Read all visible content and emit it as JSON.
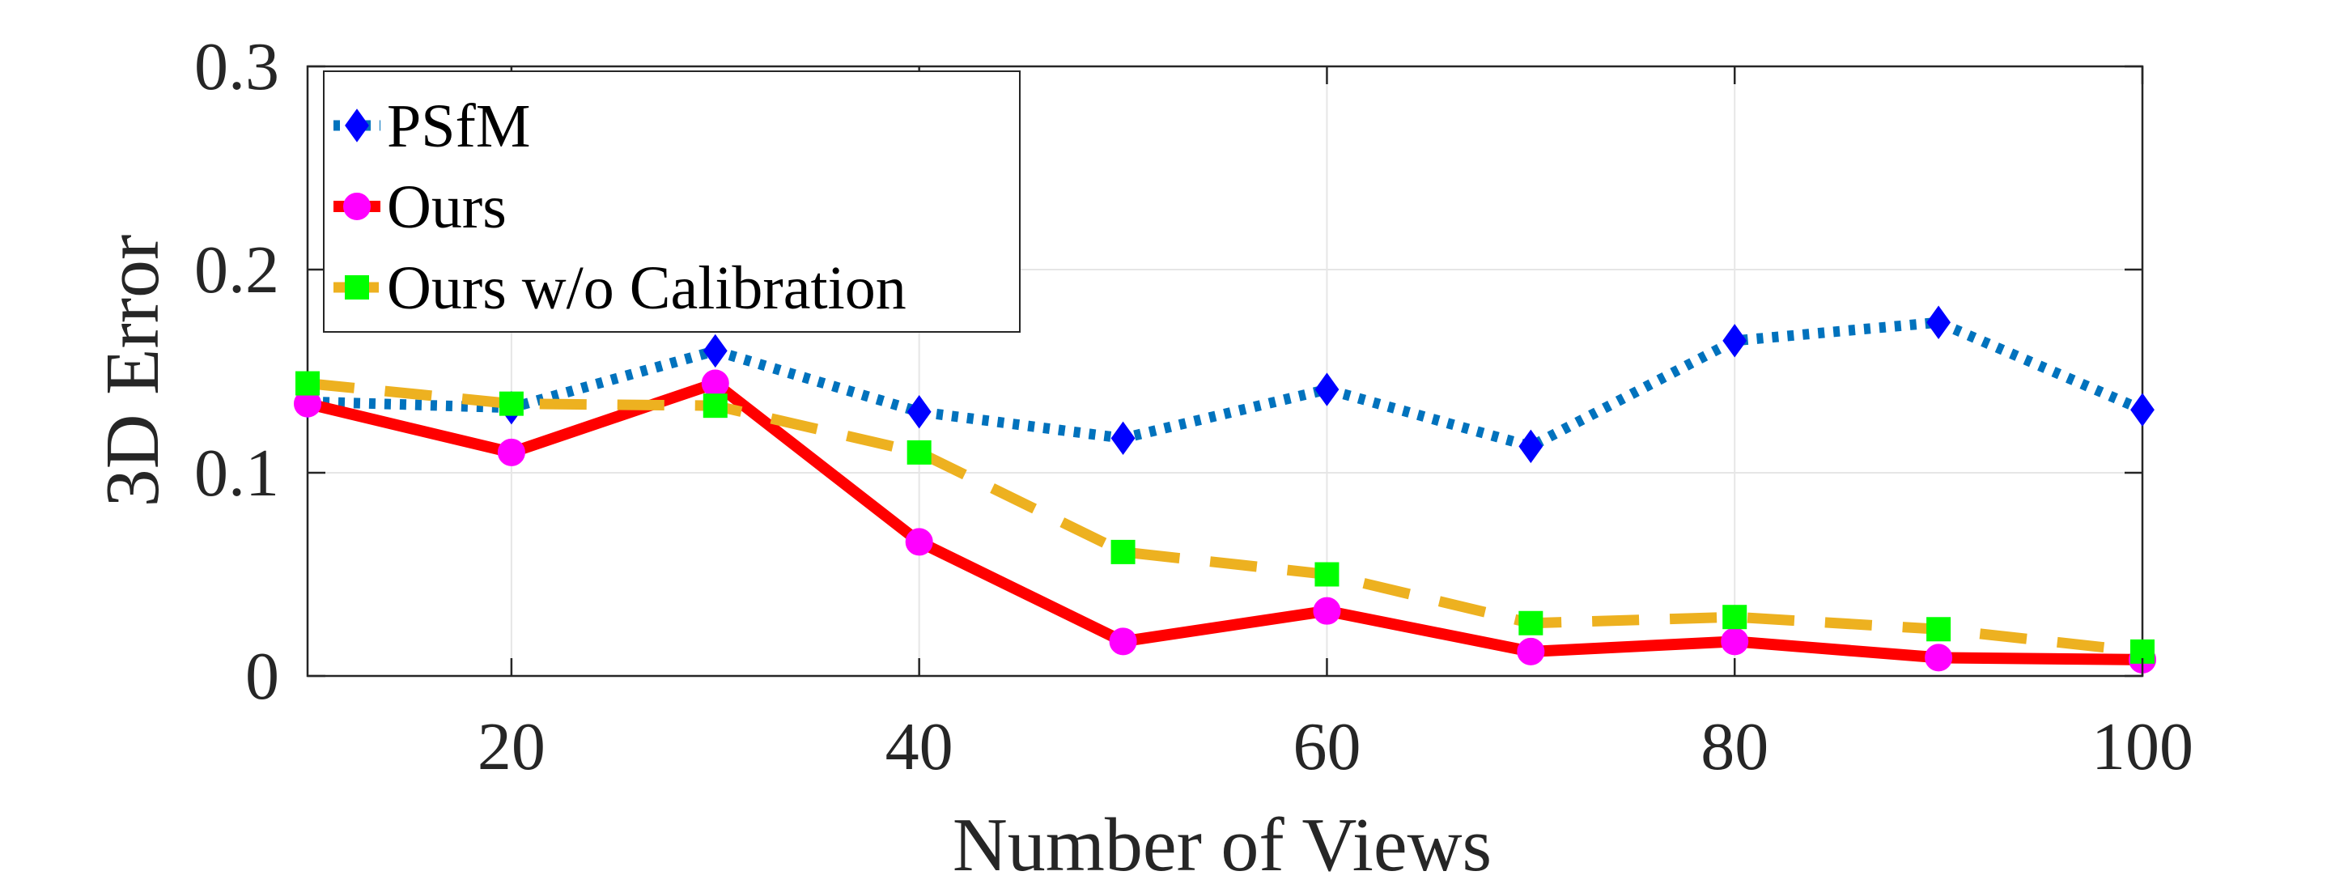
{
  "chart_data": {
    "type": "line",
    "title": "",
    "xlabel": "Number of Views",
    "ylabel": "3D Error",
    "xlim": [
      10,
      100
    ],
    "ylim": [
      0,
      0.3
    ],
    "xticks": [
      20,
      40,
      60,
      80,
      100
    ],
    "yticks": [
      0,
      0.1,
      0.2,
      0.3
    ],
    "xtick_labels": [
      "20",
      "40",
      "60",
      "80",
      "100"
    ],
    "ytick_labels": [
      "0",
      "0.1",
      "0.2",
      "0.3"
    ],
    "grid": true,
    "legend_position": "top-left",
    "x": [
      10,
      20,
      30,
      40,
      50,
      60,
      70,
      80,
      90,
      100
    ],
    "series": [
      {
        "name": "PSfM",
        "color": "#0072BD",
        "marker": "diamond",
        "marker_color": "#0000FF",
        "line_style": "dotted",
        "values": [
          0.135,
          0.132,
          0.16,
          0.13,
          0.117,
          0.141,
          0.113,
          0.165,
          0.174,
          0.131
        ]
      },
      {
        "name": "Ours",
        "color": "#FF0000",
        "marker": "circle",
        "marker_color": "#FF00FF",
        "line_style": "solid",
        "values": [
          0.134,
          0.11,
          0.144,
          0.066,
          0.017,
          0.032,
          0.012,
          0.017,
          0.009,
          0.008
        ]
      },
      {
        "name": "Ours w/o Calibration",
        "color": "#EDB120",
        "marker": "square",
        "marker_color": "#00FF00",
        "line_style": "dashed",
        "values": [
          0.144,
          0.134,
          0.133,
          0.11,
          0.061,
          0.05,
          0.026,
          0.029,
          0.023,
          0.012
        ]
      }
    ]
  }
}
